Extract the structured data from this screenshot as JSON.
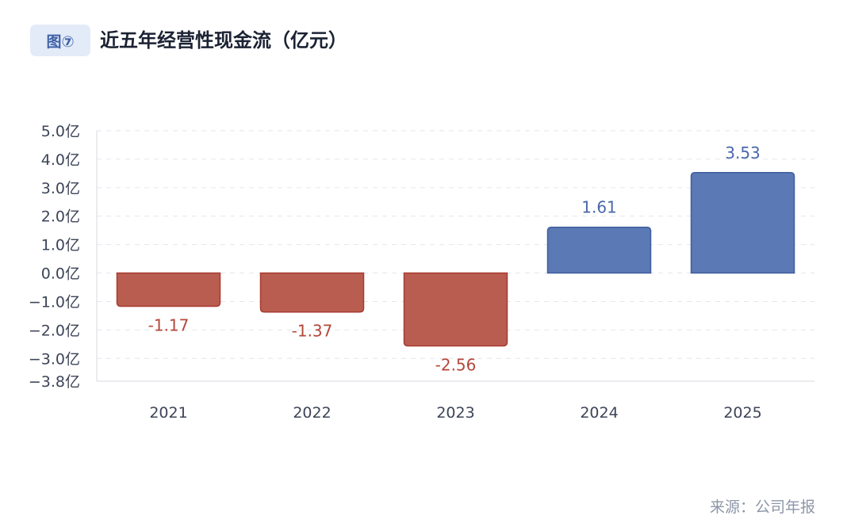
{
  "header": {
    "badge": "图⑦",
    "title": "近五年经营性现金流（亿元）"
  },
  "source": "来源：公司年报",
  "chart_data": {
    "type": "bar",
    "title": "近五年经营性现金流（亿元）",
    "categories": [
      "2021",
      "2022",
      "2023",
      "2024",
      "2025"
    ],
    "values": [
      -1.17,
      -1.37,
      -2.56,
      1.61,
      3.53
    ],
    "data_labels": [
      "-1.17",
      "-1.37",
      "-2.56",
      "1.61",
      "3.53"
    ],
    "ylim": [
      -3.8,
      5.0
    ],
    "yticks": [
      5.0,
      4.0,
      3.0,
      2.0,
      1.0,
      0.0,
      -1.0,
      -2.0,
      -3.0,
      -3.8
    ],
    "ytick_labels": [
      "5.0亿",
      "4.0亿",
      "3.0亿",
      "2.0亿",
      "1.0亿",
      "0.0亿",
      "−1.0亿",
      "−2.0亿",
      "−3.0亿",
      "−3.8亿"
    ],
    "grid": true,
    "colors": {
      "positive": "#5b79b4",
      "positive_border": "#3f5e9e",
      "negative": "#b95d50",
      "negative_border": "#a83b30",
      "positive_label": "#4a67ad",
      "negative_label": "#b5473b"
    }
  }
}
